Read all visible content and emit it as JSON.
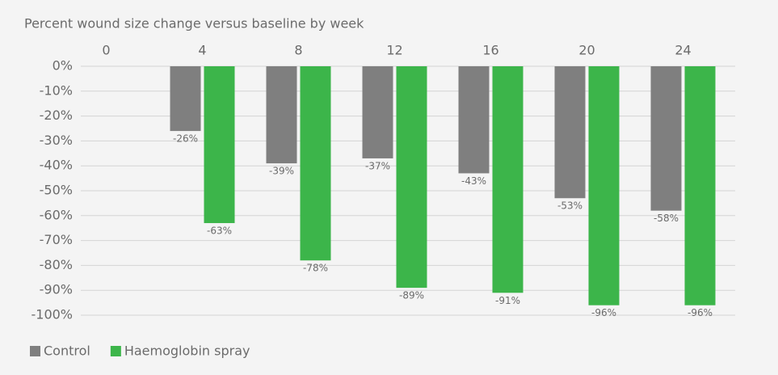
{
  "chart_data": {
    "type": "bar",
    "title": "Percent wound size change versus baseline by week",
    "categories": [
      "0",
      "4",
      "8",
      "12",
      "16",
      "20",
      "24"
    ],
    "series": [
      {
        "name": "Control",
        "color": "#7f7f7f",
        "values": [
          null,
          -26,
          -39,
          -37,
          -43,
          -53,
          -58
        ],
        "value_labels": [
          null,
          "-26%",
          "-39%",
          "-37%",
          "-43%",
          "-53%",
          "-58%"
        ]
      },
      {
        "name": "Haemoglobin spray",
        "color": "#3cb54a",
        "values": [
          null,
          -63,
          -78,
          -89,
          -91,
          -96,
          -96
        ],
        "value_labels": [
          null,
          "-63%",
          "-78%",
          "-89%",
          "-91%",
          "-96%",
          "-96%"
        ]
      }
    ],
    "ylim": [
      -100,
      0
    ],
    "yticks": [
      {
        "value": 0,
        "label": "0%"
      },
      {
        "value": -10,
        "label": "-10%"
      },
      {
        "value": -20,
        "label": "-20%"
      },
      {
        "value": -30,
        "label": "-30%"
      },
      {
        "value": -40,
        "label": "-40%"
      },
      {
        "value": -50,
        "label": "-50%"
      },
      {
        "value": -60,
        "label": "-60%"
      },
      {
        "value": -70,
        "label": "-70%"
      },
      {
        "value": -80,
        "label": "-80%"
      },
      {
        "value": -90,
        "label": "-90%"
      },
      {
        "value": -100,
        "label": "-100%"
      }
    ],
    "grid": true,
    "legend": "bottom-left"
  }
}
